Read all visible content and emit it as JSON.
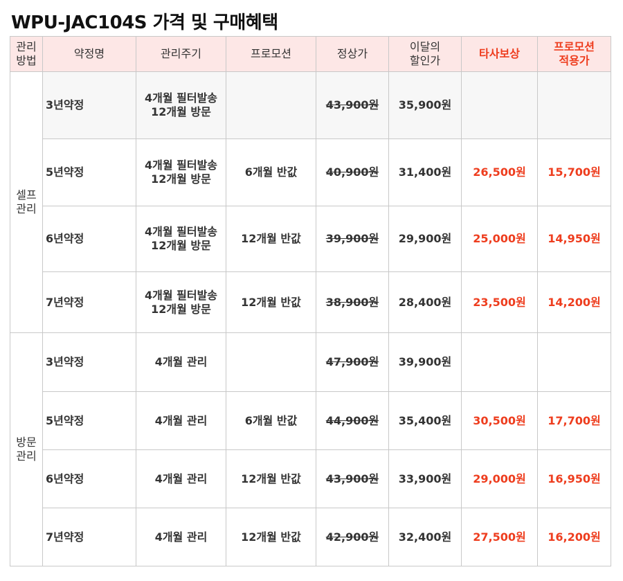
{
  "title": "WPU-JAC104S 가격 및 구매혜택",
  "headers": [
    {
      "l1": "관리",
      "l2": "방법"
    },
    {
      "l1": "약정명",
      "l2": ""
    },
    {
      "l1": "관리주기",
      "l2": ""
    },
    {
      "l1": "프로모션",
      "l2": ""
    },
    {
      "l1": "정상가",
      "l2": ""
    },
    {
      "l1": "이달의",
      "l2": "할인가"
    },
    {
      "l1": "타사보상",
      "l2": ""
    },
    {
      "l1": "프로모션",
      "l2": "적용가"
    }
  ],
  "groups": [
    {
      "l1": "셀프",
      "l2": "관리"
    },
    {
      "l1": "방문",
      "l2": "관리"
    }
  ],
  "rows": [
    {
      "plan": "3년약정",
      "cycle1": "4개월 필터발송",
      "cycle2": "12개월 방문",
      "promo": "",
      "regular": "43,900원",
      "discount": "35,900원",
      "tradein": "",
      "final": ""
    },
    {
      "plan": "5년약정",
      "cycle1": "4개월 필터발송",
      "cycle2": "12개월 방문",
      "promo": "6개월 반값",
      "regular": "40,900원",
      "discount": "31,400원",
      "tradein": "26,500원",
      "final": "15,700원"
    },
    {
      "plan": "6년약정",
      "cycle1": "4개월 필터발송",
      "cycle2": "12개월 방문",
      "promo": "12개월 반값",
      "regular": "39,900원",
      "discount": "29,900원",
      "tradein": "25,000원",
      "final": "14,950원"
    },
    {
      "plan": "7년약정",
      "cycle1": "4개월 필터발송",
      "cycle2": "12개월 방문",
      "promo": "12개월 반값",
      "regular": "38,900원",
      "discount": "28,400원",
      "tradein": "23,500원",
      "final": "14,200원"
    },
    {
      "plan": "3년약정",
      "cycle1": "4개월 관리",
      "cycle2": "",
      "promo": "",
      "regular": "47,900원",
      "discount": "39,900원",
      "tradein": "",
      "final": ""
    },
    {
      "plan": "5년약정",
      "cycle1": "4개월 관리",
      "cycle2": "",
      "promo": "6개월 반값",
      "regular": "44,900원",
      "discount": "35,400원",
      "tradein": "30,500원",
      "final": "17,700원"
    },
    {
      "plan": "6년약정",
      "cycle1": "4개월 관리",
      "cycle2": "",
      "promo": "12개월 반값",
      "regular": "43,900원",
      "discount": "33,900원",
      "tradein": "29,000원",
      "final": "16,950원"
    },
    {
      "plan": "7년약정",
      "cycle1": "4개월 관리",
      "cycle2": "",
      "promo": "12개월 반값",
      "regular": "42,900원",
      "discount": "32,400원",
      "tradein": "27,500원",
      "final": "16,200원"
    }
  ],
  "colors": {
    "header_bg": "#fde7e6",
    "accent_red": "#ee3d1e",
    "grid": "#c8c8c8",
    "row_gray": "#f7f7f7"
  }
}
